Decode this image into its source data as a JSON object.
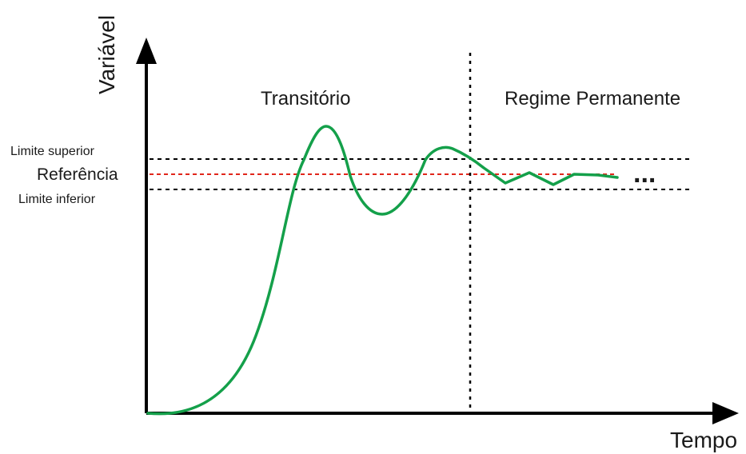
{
  "diagram": {
    "y_axis_label": "Variável",
    "x_axis_label": "Tempo",
    "region_transient": "Transitório",
    "region_steady": "Regime Permanente",
    "upper_limit_label": "Limite superior",
    "reference_label": "Referência",
    "lower_limit_label": "Limite inferior",
    "continuation": "...",
    "colors": {
      "axes": "#000000",
      "limit_lines": "#000000",
      "reference_line": "#e0261b",
      "response_curve": "#14a04a",
      "divider_line": "#000000"
    }
  }
}
